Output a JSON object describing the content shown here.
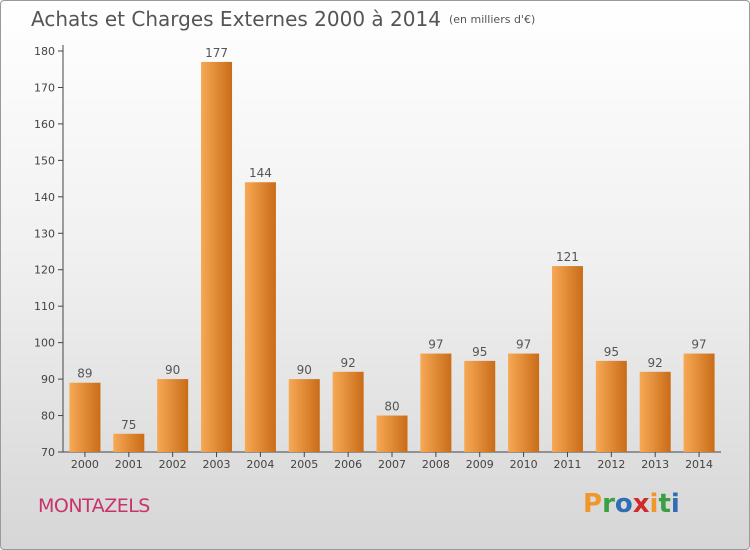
{
  "header": {
    "title": "Achats et Charges Externes 2000 à 2014",
    "unit": "(en milliers d'€)"
  },
  "footer": {
    "place": "MONTAZELS",
    "logo_letters": [
      "P",
      "r",
      "o",
      "x",
      "i",
      "t",
      "i"
    ],
    "logo_colors": [
      "#f0962a",
      "#3aa043",
      "#2f6db5",
      "#d22b2b",
      "#f0962a",
      "#3aa043",
      "#2f6db5"
    ]
  },
  "chart_data": {
    "type": "bar",
    "title": "Achats et Charges Externes 2000 à 2014",
    "subtitle": "(en milliers d'€)",
    "categories": [
      "2000",
      "2001",
      "2002",
      "2003",
      "2004",
      "2005",
      "2006",
      "2007",
      "2008",
      "2009",
      "2010",
      "2011",
      "2012",
      "2013",
      "2014"
    ],
    "values": [
      89,
      75,
      90,
      177,
      144,
      90,
      92,
      80,
      97,
      95,
      97,
      121,
      95,
      92,
      97
    ],
    "ylim": [
      70,
      180
    ],
    "yticks": [
      70,
      80,
      90,
      100,
      110,
      120,
      130,
      140,
      150,
      160,
      170,
      180
    ],
    "grid": false,
    "colors": {
      "bar_light": "#f7a955",
      "bar_dark": "#c96c18",
      "axis": "#444444"
    }
  }
}
